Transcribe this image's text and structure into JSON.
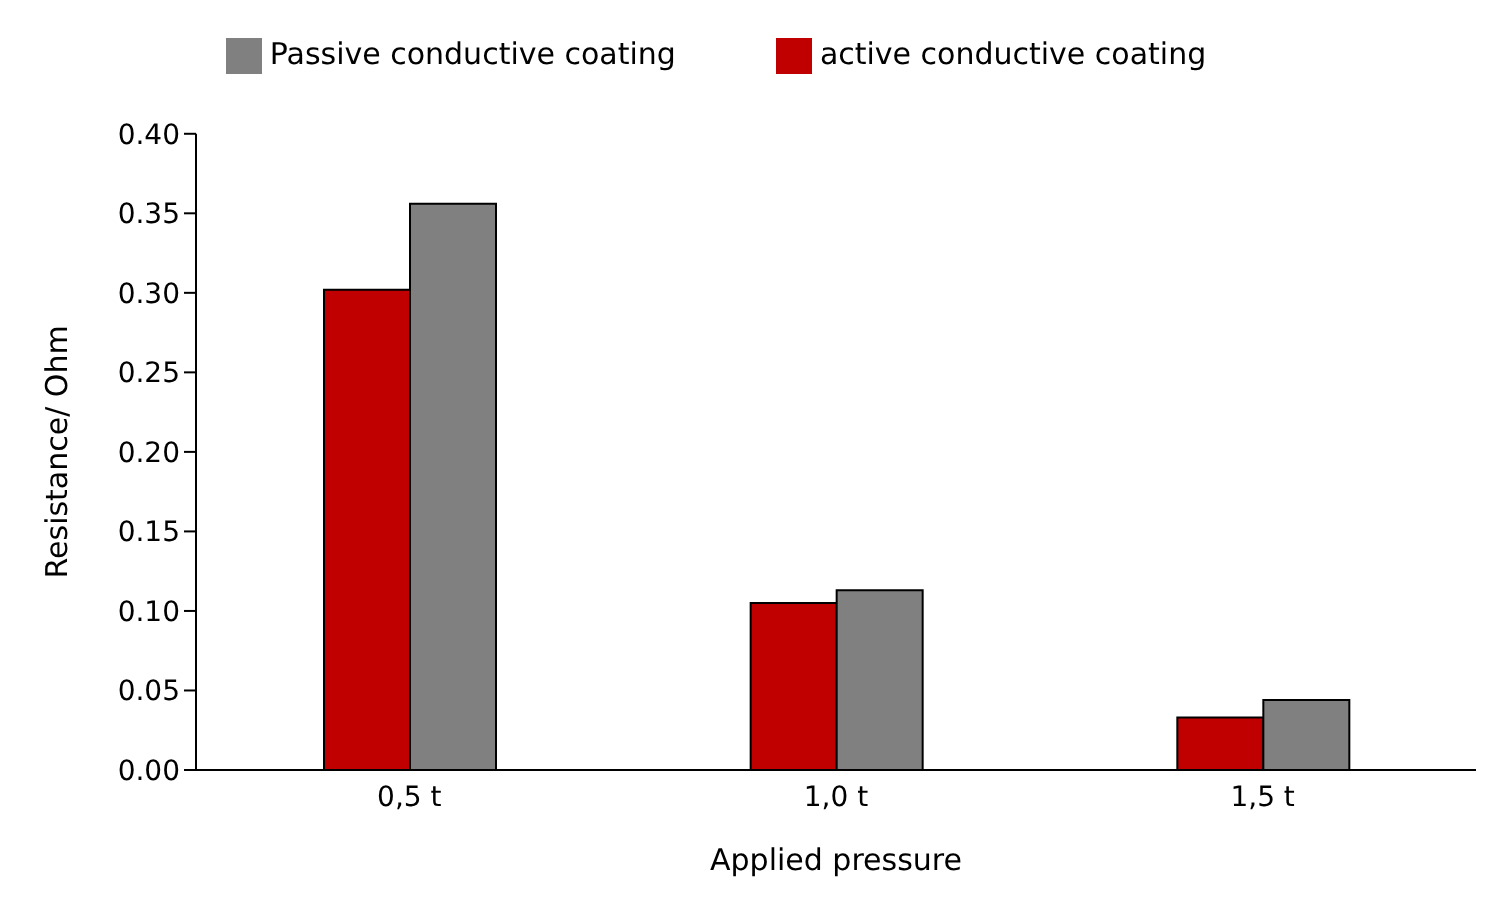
{
  "chart_data": {
    "type": "bar",
    "xlabel": "Applied pressure",
    "ylabel": "Resistance/ Ohm",
    "categories": [
      "0,5 t",
      "1,0 t",
      "1,5 t"
    ],
    "series": [
      {
        "name": "active conductive coating",
        "color": "#c00000",
        "values": [
          0.302,
          0.105,
          0.033
        ]
      },
      {
        "name": "Passive conductive coating",
        "color": "#808080",
        "values": [
          0.356,
          0.113,
          0.044
        ]
      }
    ],
    "ylim": [
      0,
      0.4
    ],
    "yticks": [
      {
        "value": 0,
        "label": "0.00"
      },
      {
        "value": 0.05,
        "label": "0.05"
      },
      {
        "value": 0.1,
        "label": "0.10"
      },
      {
        "value": 0.15,
        "label": "0.15"
      },
      {
        "value": 0.2,
        "label": "0.20"
      },
      {
        "value": 0.25,
        "label": "0.25"
      },
      {
        "value": 0.3,
        "label": "0.30"
      },
      {
        "value": 0.35,
        "label": "0.35"
      },
      {
        "value": 0.4,
        "label": "0.40"
      }
    ],
    "grid": false,
    "legend": "top"
  }
}
